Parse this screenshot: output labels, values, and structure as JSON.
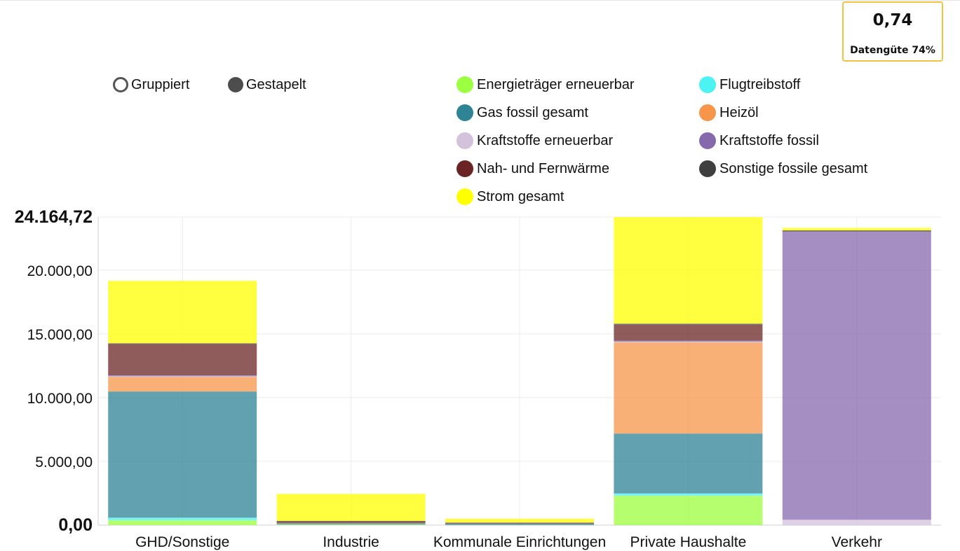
{
  "quality": {
    "value": "0,74",
    "label": "Datengüte 74%"
  },
  "modes": [
    {
      "label": "Gruppiert",
      "selected": false
    },
    {
      "label": "Gestapelt",
      "selected": true
    }
  ],
  "chart_data": {
    "type": "bar",
    "stacked": true,
    "categories": [
      "GHD/Sonstige",
      "Industrie",
      "Kommunale Einrichtungen",
      "Private Haushalte",
      "Verkehr"
    ],
    "ylim": [
      0,
      24164.72
    ],
    "yticks": [
      {
        "value": 0,
        "label": "0,00",
        "bold": true
      },
      {
        "value": 5000,
        "label": "5.000,00",
        "bold": false
      },
      {
        "value": 10000,
        "label": "10.000,00",
        "bold": false
      },
      {
        "value": 15000,
        "label": "15.000,00",
        "bold": false
      },
      {
        "value": 20000,
        "label": "20.000,00",
        "bold": false
      },
      {
        "value": 24164.72,
        "label": "24.164,72",
        "bold": true
      }
    ],
    "grid": true,
    "legend_position": "top-right",
    "series": [
      {
        "name": "Energieträger erneuerbar",
        "color": "#9cff3f",
        "values": [
          380,
          50,
          0,
          2300,
          0
        ]
      },
      {
        "name": "Flugtreibstoff",
        "color": "#4df2f2",
        "values": [
          200,
          0,
          0,
          180,
          0
        ]
      },
      {
        "name": "Gas fossil gesamt",
        "color": "#2e8395",
        "values": [
          9900,
          80,
          100,
          4700,
          0
        ]
      },
      {
        "name": "Heizöl",
        "color": "#f7964a",
        "values": [
          1150,
          10,
          10,
          7150,
          0
        ]
      },
      {
        "name": "Kraftstoffe erneuerbar",
        "color": "#d4c2dc",
        "values": [
          40,
          0,
          0,
          50,
          420
        ]
      },
      {
        "name": "Kraftstoffe fossil",
        "color": "#8668ad",
        "values": [
          80,
          10,
          0,
          90,
          22600
        ]
      },
      {
        "name": "Nah- und Fernwärme",
        "color": "#6b2424",
        "values": [
          2450,
          150,
          70,
          1250,
          0
        ]
      },
      {
        "name": "Sonstige fossile gesamt",
        "color": "#3f3f3f",
        "values": [
          60,
          30,
          20,
          80,
          100
        ]
      },
      {
        "name": "Strom gesamt",
        "color": "#ffff00",
        "values": [
          4900,
          2120,
          300,
          8360,
          200
        ]
      }
    ]
  }
}
